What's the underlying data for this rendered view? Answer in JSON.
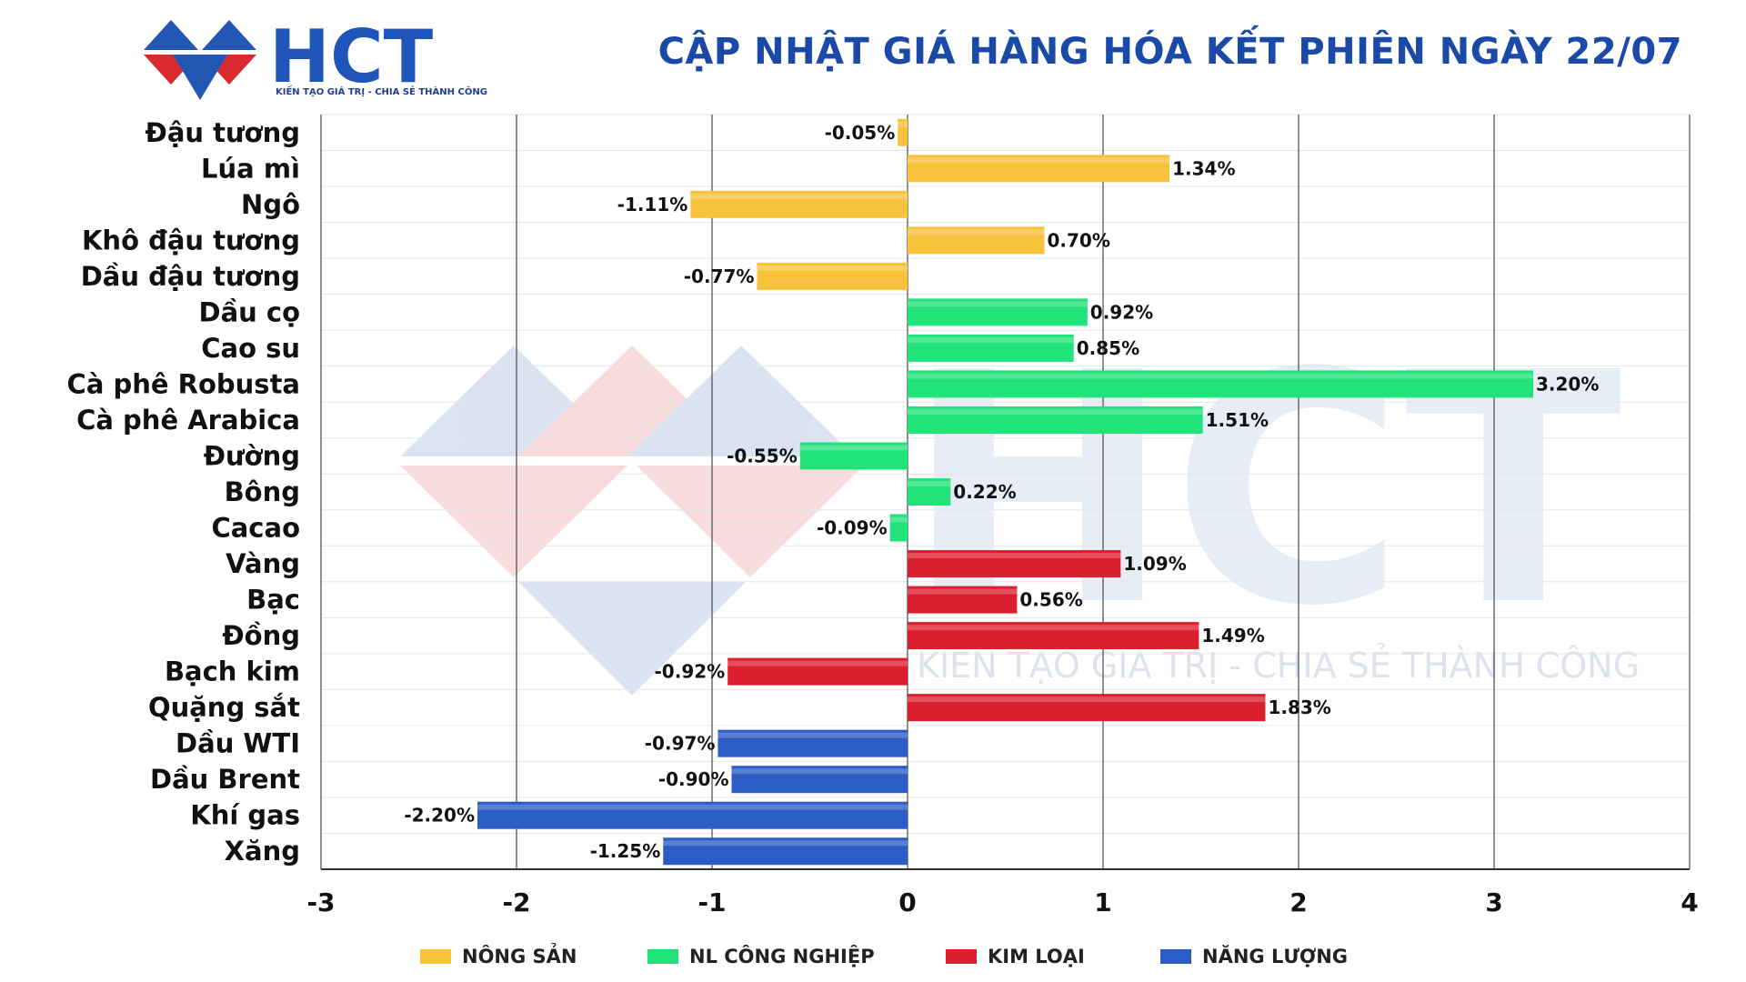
{
  "header": {
    "logo_text": "HCT",
    "logo_slogan": "KIẾN TẠO GIÁ TRỊ - CHIA SẺ THÀNH CÔNG",
    "title": "CẬP NHẬT GIÁ HÀNG HÓA KẾT PHIÊN NGÀY 22/07"
  },
  "watermark": {
    "text": "HCT",
    "slogan": "KIẾN TẠO GIÁ TRỊ - CHIA SẺ THÀNH CÔNG"
  },
  "colors": {
    "NÔNG SẢN": "#f8c23a",
    "NL CÔNG NGHIỆP": "#22e27a",
    "KIM LOẠI": "#dc1f2e",
    "NĂNG LƯỢNG": "#2c5cc6"
  },
  "chart_data": {
    "type": "bar",
    "orientation": "horizontal",
    "title": "CẬP NHẬT GIÁ HÀNG HÓA KẾT PHIÊN NGÀY 22/07",
    "xlabel": "",
    "ylabel": "",
    "xlim": [
      -3,
      4
    ],
    "xticks": [
      -3,
      -2,
      -1,
      0,
      1,
      2,
      3,
      4
    ],
    "grid": "vertical",
    "legend_position": "bottom",
    "legend": [
      "NÔNG SẢN",
      "NL CÔNG NGHIỆP",
      "KIM LOẠI",
      "NĂNG LƯỢNG"
    ],
    "items": [
      {
        "label": "Đậu tương",
        "value": -0.05,
        "value_label": "-0.05%",
        "group": "NÔNG SẢN"
      },
      {
        "label": "Lúa mì",
        "value": 1.34,
        "value_label": "1.34%",
        "group": "NÔNG SẢN"
      },
      {
        "label": "Ngô",
        "value": -1.11,
        "value_label": "-1.11%",
        "group": "NÔNG SẢN"
      },
      {
        "label": "Khô đậu tương",
        "value": 0.7,
        "value_label": "0.70%",
        "group": "NÔNG SẢN"
      },
      {
        "label": "Dầu đậu tương",
        "value": -0.77,
        "value_label": "-0.77%",
        "group": "NÔNG SẢN"
      },
      {
        "label": "Dầu cọ",
        "value": 0.92,
        "value_label": "0.92%",
        "group": "NL CÔNG NGHIỆP"
      },
      {
        "label": "Cao su",
        "value": 0.85,
        "value_label": "0.85%",
        "group": "NL CÔNG NGHIỆP"
      },
      {
        "label": "Cà phê Robusta",
        "value": 3.2,
        "value_label": "3.20%",
        "group": "NL CÔNG NGHIỆP"
      },
      {
        "label": "Cà phê Arabica",
        "value": 1.51,
        "value_label": "1.51%",
        "group": "NL CÔNG NGHIỆP"
      },
      {
        "label": "Đường",
        "value": -0.55,
        "value_label": "-0.55%",
        "group": "NL CÔNG NGHIỆP"
      },
      {
        "label": "Bông",
        "value": 0.22,
        "value_label": "0.22%",
        "group": "NL CÔNG NGHIỆP"
      },
      {
        "label": "Cacao",
        "value": -0.09,
        "value_label": "-0.09%",
        "group": "NL CÔNG NGHIỆP"
      },
      {
        "label": "Vàng",
        "value": 1.09,
        "value_label": "1.09%",
        "group": "KIM LOẠI"
      },
      {
        "label": "Bạc",
        "value": 0.56,
        "value_label": "0.56%",
        "group": "KIM LOẠI"
      },
      {
        "label": "Đồng",
        "value": 1.49,
        "value_label": "1.49%",
        "group": "KIM LOẠI"
      },
      {
        "label": "Bạch kim",
        "value": -0.92,
        "value_label": "-0.92%",
        "group": "KIM LOẠI"
      },
      {
        "label": "Quặng sắt",
        "value": 1.83,
        "value_label": "1.83%",
        "group": "KIM LOẠI"
      },
      {
        "label": "Dầu WTI",
        "value": -0.97,
        "value_label": "-0.97%",
        "group": "NĂNG LƯỢNG"
      },
      {
        "label": "Dầu Brent",
        "value": -0.9,
        "value_label": "-0.90%",
        "group": "NĂNG LƯỢNG"
      },
      {
        "label": "Khí gas",
        "value": -2.2,
        "value_label": "-2.20%",
        "group": "NĂNG LƯỢNG"
      },
      {
        "label": "Xăng",
        "value": -1.25,
        "value_label": "-1.25%",
        "group": "NĂNG LƯỢNG"
      }
    ]
  }
}
